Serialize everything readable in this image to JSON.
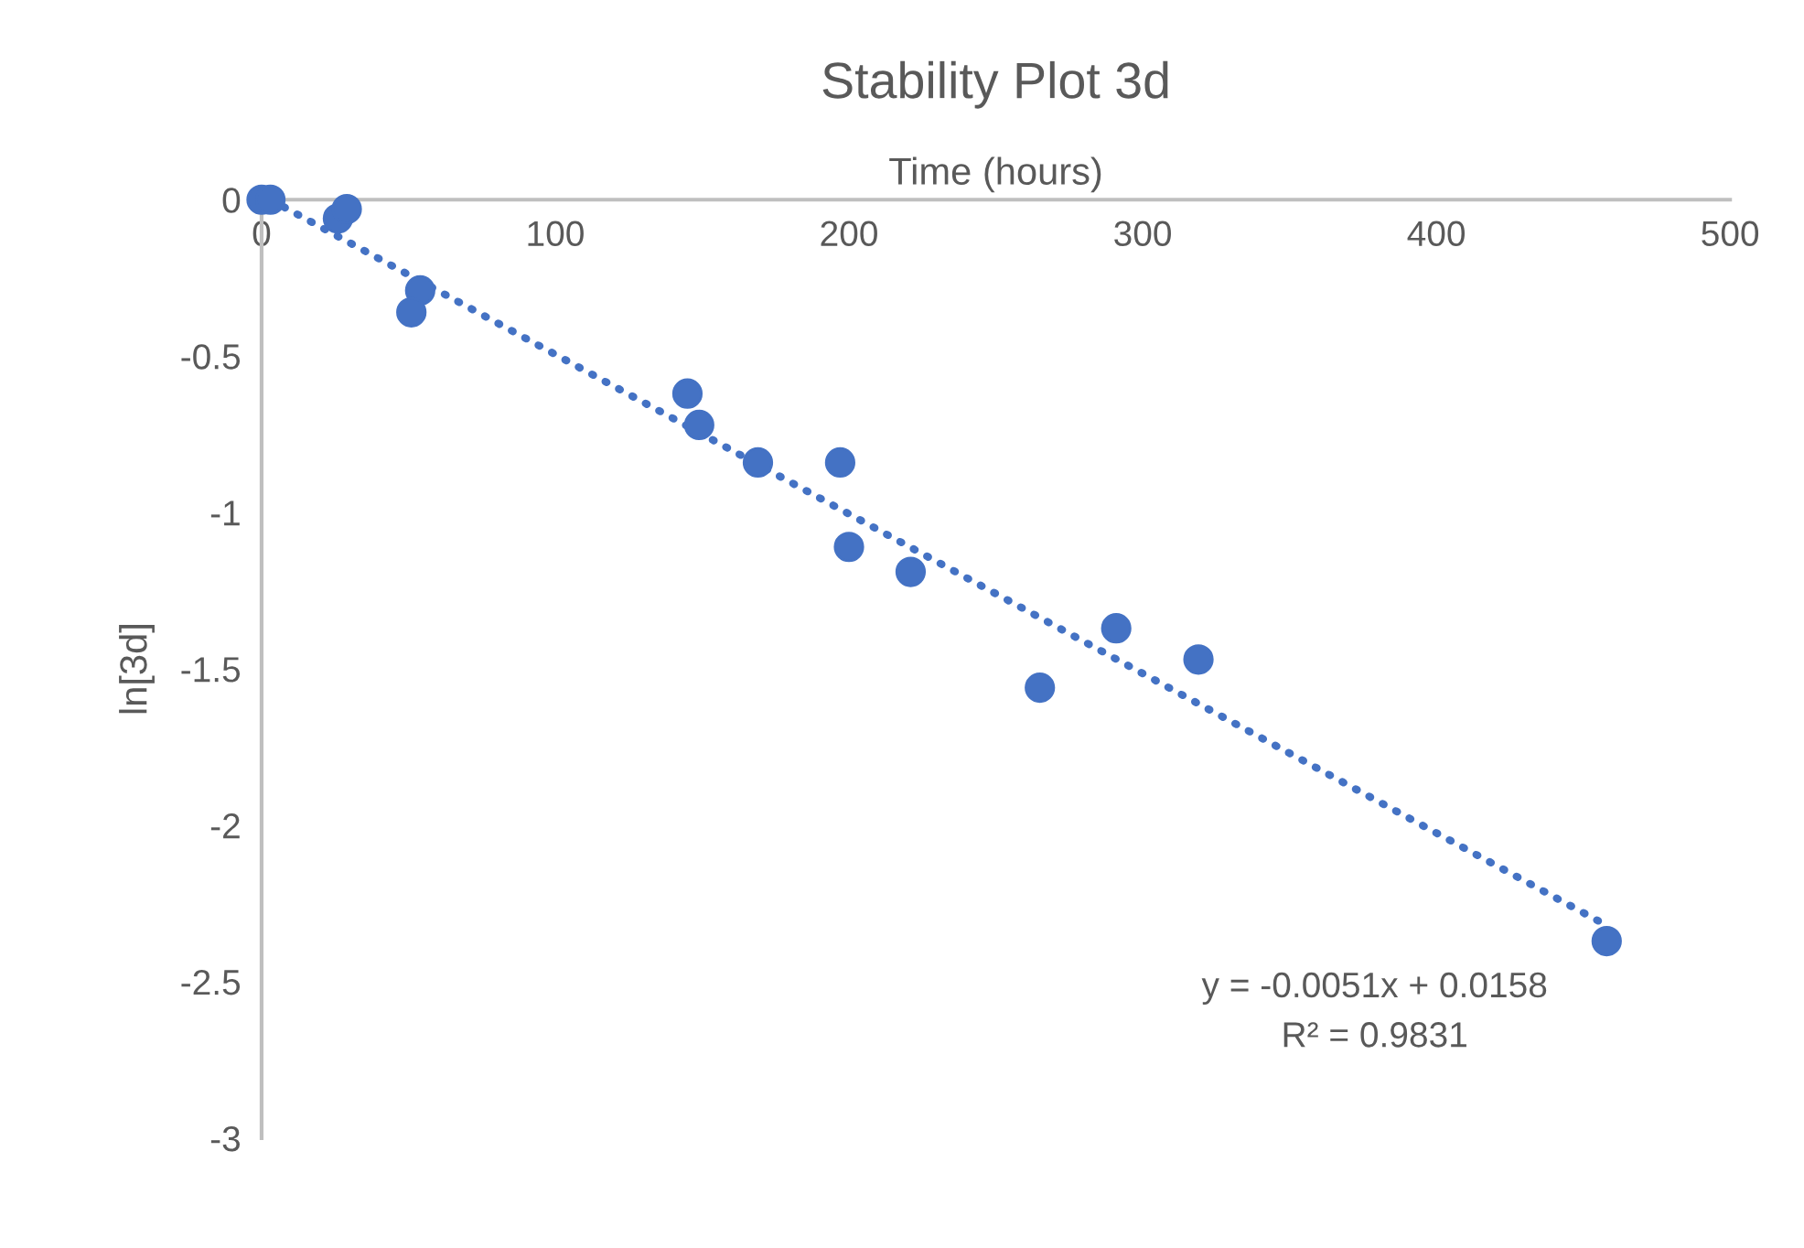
{
  "chart_data": {
    "type": "scatter",
    "title": "Stability Plot 3d",
    "xlabel": "Time (hours)",
    "ylabel": "ln[3d]",
    "xlim": [
      0,
      500
    ],
    "xticks": [
      0,
      100,
      200,
      300,
      400,
      500
    ],
    "ylim": [
      -3,
      0
    ],
    "yticks": [
      0,
      -0.5,
      -1,
      -1.5,
      -2,
      -2.5,
      -3
    ],
    "grid": false,
    "legend": false,
    "marker": "circle",
    "series": [
      {
        "color": "#4472c4",
        "x": [
          0,
          3,
          26,
          29,
          54,
          51,
          145,
          149,
          169,
          197,
          200,
          221,
          265,
          291,
          319,
          458
        ],
        "values": [
          0,
          0,
          -0.06,
          -0.03,
          -0.29,
          -0.36,
          -0.62,
          -0.72,
          -0.84,
          -0.84,
          -1.11,
          -1.19,
          -1.56,
          -1.37,
          -1.47,
          -2.37
        ]
      },
      {
        "type": "line",
        "color": "#4472c4",
        "line_style": "dotted",
        "marker": "none",
        "x": [
          3,
          458
        ],
        "values": [
          0,
          -2.32
        ]
      }
    ],
    "annotations": [
      "y = -0.0051x + 0.0158",
      "R² = 0.9831"
    ]
  }
}
